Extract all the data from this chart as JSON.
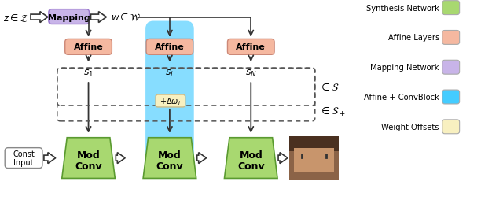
{
  "colors": {
    "light_green": "#A8D870",
    "salmon": "#F5B8A0",
    "purple": "#C8B4E8",
    "light_cyan": "#87DDFF",
    "light_yellow": "#F8F0C0",
    "white": "#FFFFFF",
    "black": "#000000",
    "arrow": "#333333",
    "dashed_border": "#555555"
  },
  "legend": {
    "items": [
      "Synthesis Network",
      "Affine Layers",
      "Mapping Network",
      "Affine + ConvBlock",
      "Weight Offsets"
    ],
    "colors": [
      "#A8D870",
      "#F5B8A0",
      "#C8B4E8",
      "#44CCFF",
      "#F8F0C0"
    ]
  },
  "background": "#FFFFFF"
}
